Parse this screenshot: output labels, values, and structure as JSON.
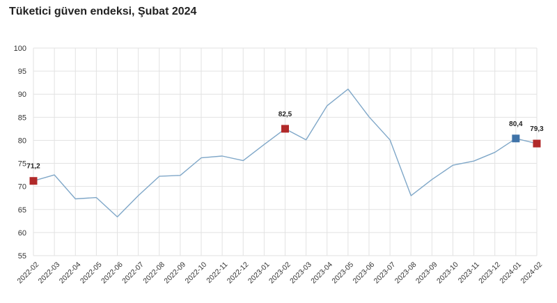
{
  "chart_data": {
    "type": "line",
    "title": "Tüketici güven endeksi, Şubat 2024",
    "xlabel": "",
    "ylabel": "",
    "ylim": [
      55,
      100
    ],
    "yticks": [
      "55",
      "60",
      "65",
      "70",
      "75",
      "80",
      "85",
      "90",
      "95",
      "100"
    ],
    "grid": true,
    "categories": [
      "2022-02",
      "2022-03",
      "2022-04",
      "2022-05",
      "2022-06",
      "2022-07",
      "2022-08",
      "2022-09",
      "2022-10",
      "2022-11",
      "2022-12",
      "2023-01",
      "2023-02",
      "2023-03",
      "2023-04",
      "2023-05",
      "2023-06",
      "2023-07",
      "2023-08",
      "2023-09",
      "2023-10",
      "2023-11",
      "2023-12",
      "2024-01",
      "2024-02"
    ],
    "series": [
      {
        "color": "#7fa7c8",
        "values": [
          71.2,
          72.5,
          67.3,
          67.6,
          63.4,
          68.0,
          72.2,
          72.4,
          76.2,
          76.6,
          75.6,
          79.1,
          82.5,
          80.1,
          87.5,
          91.1,
          85.1,
          80.1,
          68.0,
          71.5,
          74.6,
          75.5,
          77.4,
          80.4,
          79.3
        ]
      }
    ],
    "highlights": [
      {
        "category": "2022-02",
        "value": 71.2,
        "label": "71,2",
        "color": "#b12a2a"
      },
      {
        "category": "2023-02",
        "value": 82.5,
        "label": "82,5",
        "color": "#b12a2a"
      },
      {
        "category": "2024-01",
        "value": 80.4,
        "label": "80,4",
        "color": "#3f73a8"
      },
      {
        "category": "2024-02",
        "value": 79.3,
        "label": "79,3",
        "color": "#b12a2a"
      }
    ]
  }
}
